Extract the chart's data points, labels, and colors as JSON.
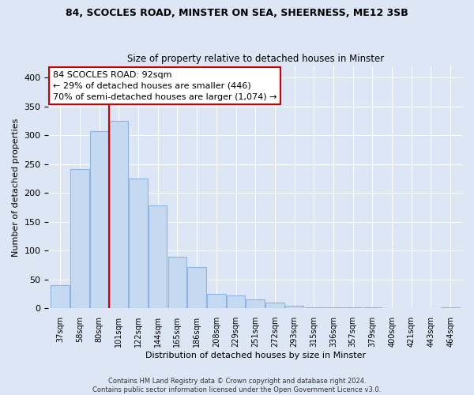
{
  "title1": "84, SCOCLES ROAD, MINSTER ON SEA, SHEERNESS, ME12 3SB",
  "title2": "Size of property relative to detached houses in Minster",
  "xlabel": "Distribution of detached houses by size in Minster",
  "ylabel": "Number of detached properties",
  "categories": [
    "37sqm",
    "58sqm",
    "80sqm",
    "101sqm",
    "122sqm",
    "144sqm",
    "165sqm",
    "186sqm",
    "208sqm",
    "229sqm",
    "251sqm",
    "272sqm",
    "293sqm",
    "315sqm",
    "336sqm",
    "357sqm",
    "379sqm",
    "400sqm",
    "421sqm",
    "443sqm",
    "464sqm"
  ],
  "values": [
    40,
    241,
    307,
    325,
    225,
    178,
    90,
    72,
    25,
    22,
    15,
    10,
    4,
    2,
    2,
    2,
    1,
    0,
    0,
    0,
    1
  ],
  "bar_color": "#c5d9f1",
  "bar_edge_color": "#8db4e2",
  "vline_color": "#cc0000",
  "vline_pos": 2.5,
  "annotation_box_text": "84 SCOCLES ROAD: 92sqm\n← 29% of detached houses are smaller (446)\n70% of semi-detached houses are larger (1,074) →",
  "footer1": "Contains HM Land Registry data © Crown copyright and database right 2024.",
  "footer2": "Contains public sector information licensed under the Open Government Licence v3.0.",
  "background_color": "#dce6f5",
  "plot_bg_color": "#dce6f5",
  "grid_color": "#ffffff",
  "ylim": [
    0,
    420
  ],
  "yticks": [
    0,
    50,
    100,
    150,
    200,
    250,
    300,
    350,
    400
  ]
}
